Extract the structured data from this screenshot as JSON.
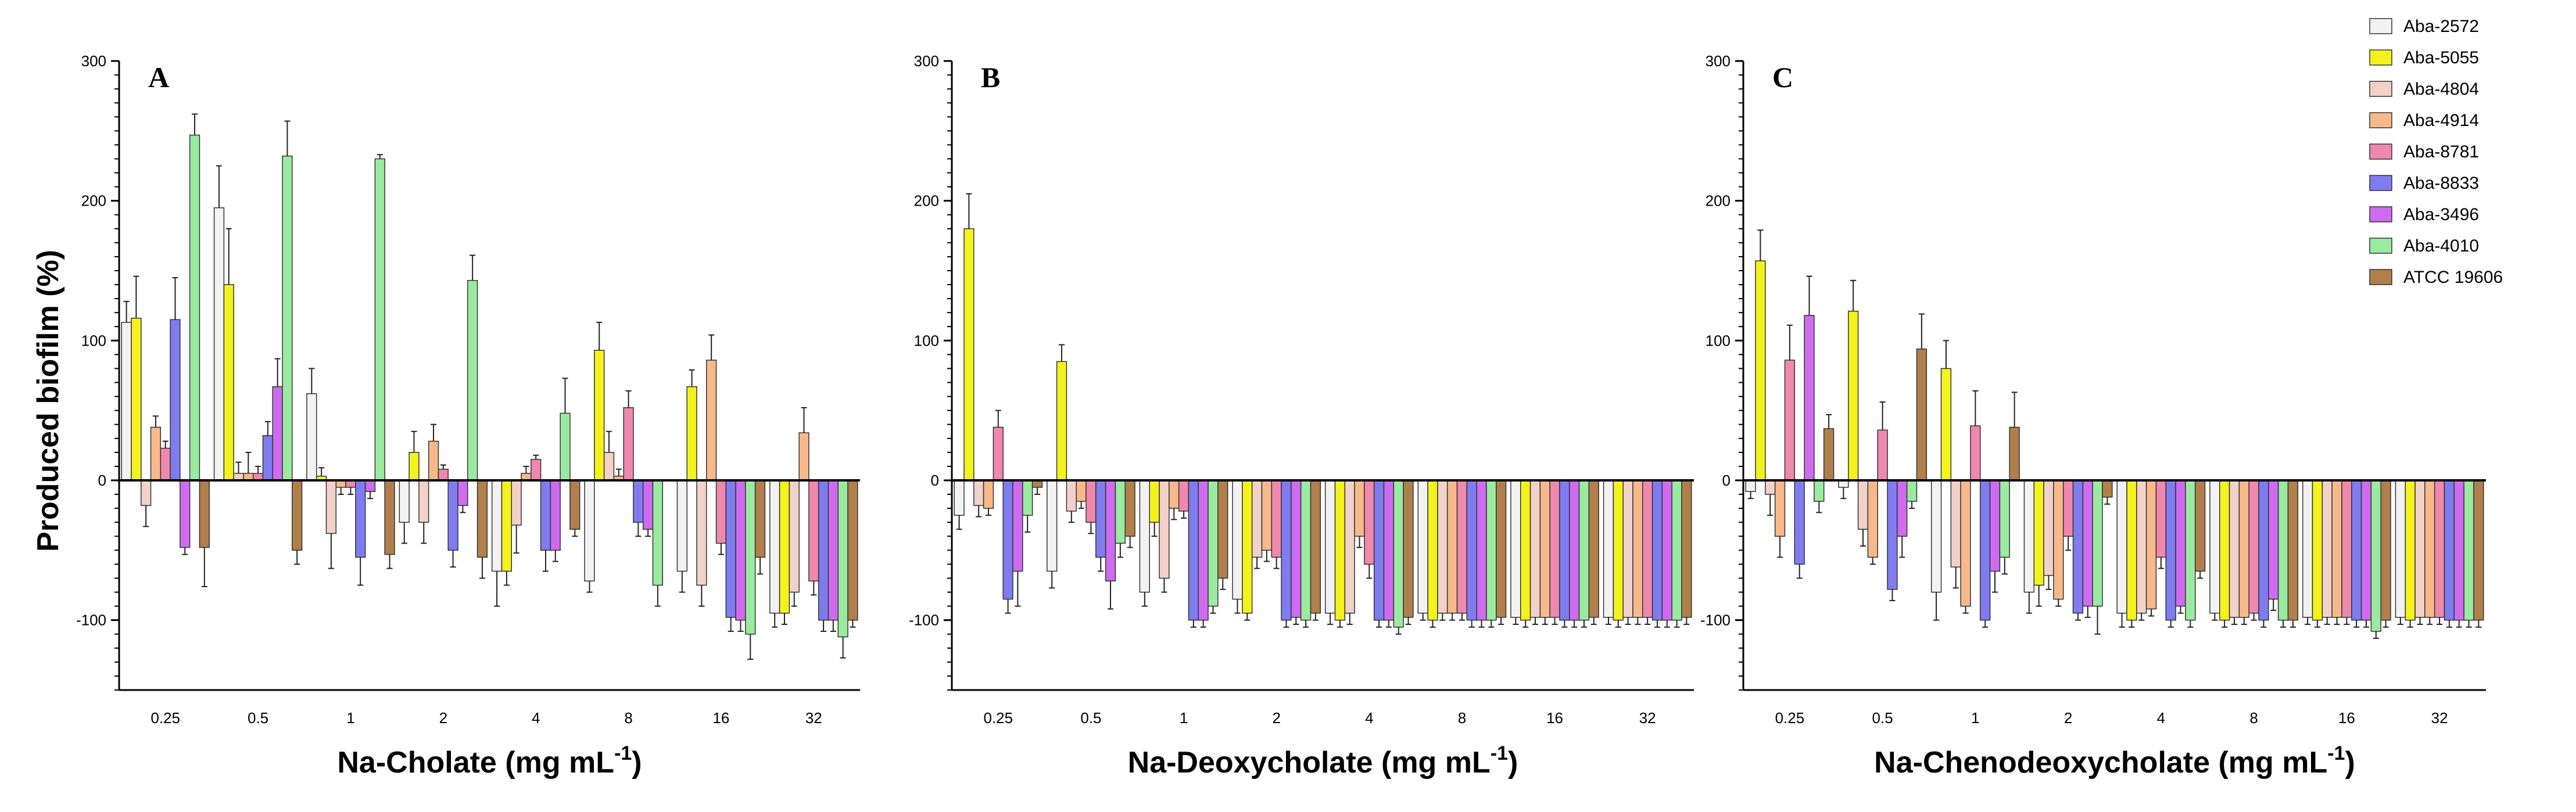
{
  "figure": {
    "ylabel": "Produced biofilm (%)"
  },
  "legend": [
    {
      "name": "Aba-2572",
      "color": "#f2f2f2"
    },
    {
      "name": "Aba-5055",
      "color": "#f4f21c"
    },
    {
      "name": "Aba-4804",
      "color": "#f2d1c9"
    },
    {
      "name": "Aba-4914",
      "color": "#f7b98a"
    },
    {
      "name": "Aba-8781",
      "color": "#ef88ad"
    },
    {
      "name": "Aba-8833",
      "color": "#7e7cef"
    },
    {
      "name": "Aba-3496",
      "color": "#cf6bef"
    },
    {
      "name": "Aba-4010",
      "color": "#9aeba1"
    },
    {
      "name": "ATCC 19606",
      "color": "#b07f4b"
    }
  ],
  "chart_data": [
    {
      "type": "bar",
      "panel": "A",
      "xlabel": "Na-Cholate (mg mL",
      "xlabel_sup": "-1",
      "xlabel_close": ")",
      "ylim": [
        -150,
        300
      ],
      "yticks": [
        300,
        200,
        100,
        0,
        -100
      ],
      "categories": [
        "0.25",
        "0.5",
        "1",
        "2",
        "4",
        "8",
        "16",
        "32"
      ],
      "series": [
        {
          "name": "Aba-2572",
          "values": [
            113,
            195,
            62,
            -30,
            -65,
            -72,
            -65,
            -95
          ],
          "errors": [
            15,
            30,
            18,
            15,
            25,
            8,
            15,
            10
          ]
        },
        {
          "name": "Aba-5055",
          "values": [
            116,
            140,
            3,
            20,
            -65,
            93,
            67,
            -95
          ],
          "errors": [
            30,
            40,
            6,
            15,
            10,
            20,
            12,
            8
          ]
        },
        {
          "name": "Aba-4804",
          "values": [
            -18,
            5,
            -38,
            -30,
            -32,
            20,
            -75,
            -80
          ],
          "errors": [
            15,
            8,
            25,
            15,
            20,
            15,
            15,
            10
          ]
        },
        {
          "name": "Aba-4914",
          "values": [
            38,
            5,
            -5,
            28,
            5,
            3,
            86,
            34
          ],
          "errors": [
            8,
            15,
            5,
            12,
            5,
            5,
            18,
            18
          ]
        },
        {
          "name": "Aba-8781",
          "values": [
            23,
            5,
            -5,
            8,
            15,
            52,
            -45,
            -72
          ],
          "errors": [
            5,
            5,
            5,
            3,
            3,
            12,
            8,
            10
          ]
        },
        {
          "name": "Aba-8833",
          "values": [
            115,
            32,
            -55,
            -50,
            -50,
            -30,
            -98,
            -100
          ],
          "errors": [
            30,
            10,
            20,
            12,
            15,
            10,
            10,
            8
          ]
        },
        {
          "name": "Aba-3496",
          "values": [
            -48,
            67,
            -8,
            -18,
            -50,
            -35,
            -100,
            -100
          ],
          "errors": [
            5,
            20,
            5,
            5,
            8,
            5,
            8,
            8
          ]
        },
        {
          "name": "Aba-4010",
          "values": [
            247,
            232,
            230,
            143,
            48,
            -75,
            -110,
            -112
          ],
          "errors": [
            15,
            25,
            3,
            18,
            25,
            15,
            18,
            15
          ]
        },
        {
          "name": "ATCC 19606",
          "values": [
            -48,
            -50,
            -53,
            -55,
            -35,
            0,
            -55,
            -100
          ],
          "errors": [
            28,
            10,
            10,
            15,
            5,
            0,
            12,
            5
          ]
        }
      ]
    },
    {
      "type": "bar",
      "panel": "B",
      "xlabel": "Na-Deoxycholate (mg mL",
      "xlabel_sup": "-1",
      "xlabel_close": ")",
      "ylim": [
        -150,
        300
      ],
      "yticks": [
        300,
        200,
        100,
        0,
        -100
      ],
      "categories": [
        "0.25",
        "0.5",
        "1",
        "2",
        "4",
        "8",
        "16",
        "32"
      ],
      "series": [
        {
          "name": "Aba-2572",
          "values": [
            -25,
            -65,
            -80,
            -85,
            -95,
            -95,
            -98,
            -98
          ],
          "errors": [
            10,
            12,
            10,
            10,
            8,
            5,
            5,
            5
          ]
        },
        {
          "name": "Aba-5055",
          "values": [
            180,
            85,
            -30,
            -95,
            -100,
            -100,
            -100,
            -100
          ],
          "errors": [
            25,
            12,
            10,
            5,
            5,
            5,
            5,
            5
          ]
        },
        {
          "name": "Aba-4804",
          "values": [
            -18,
            -22,
            -70,
            -55,
            -95,
            -95,
            -98,
            -98
          ],
          "errors": [
            8,
            8,
            10,
            8,
            8,
            5,
            5,
            5
          ]
        },
        {
          "name": "Aba-4914",
          "values": [
            -20,
            -15,
            -20,
            -50,
            -40,
            -95,
            -98,
            -98
          ],
          "errors": [
            5,
            5,
            8,
            8,
            8,
            5,
            5,
            5
          ]
        },
        {
          "name": "Aba-8781",
          "values": [
            38,
            -30,
            -22,
            -55,
            -60,
            -95,
            -98,
            -98
          ],
          "errors": [
            12,
            8,
            5,
            8,
            10,
            5,
            5,
            5
          ]
        },
        {
          "name": "Aba-8833",
          "values": [
            -85,
            -55,
            -100,
            -100,
            -100,
            -100,
            -100,
            -100
          ],
          "errors": [
            10,
            10,
            5,
            5,
            5,
            5,
            5,
            5
          ]
        },
        {
          "name": "Aba-3496",
          "values": [
            -65,
            -72,
            -100,
            -98,
            -100,
            -100,
            -100,
            -100
          ],
          "errors": [
            25,
            20,
            5,
            5,
            5,
            5,
            5,
            5
          ]
        },
        {
          "name": "Aba-4010",
          "values": [
            -25,
            -45,
            -90,
            -100,
            -105,
            -100,
            -100,
            -100
          ],
          "errors": [
            12,
            10,
            5,
            5,
            5,
            5,
            5,
            5
          ]
        },
        {
          "name": "ATCC 19606",
          "values": [
            -5,
            -40,
            -70,
            -95,
            -98,
            -98,
            -98,
            -98
          ],
          "errors": [
            5,
            8,
            8,
            5,
            5,
            5,
            5,
            5
          ]
        }
      ]
    },
    {
      "type": "bar",
      "panel": "C",
      "xlabel": "Na-Chenodeoxycholate (mg mL",
      "xlabel_sup": "-1",
      "xlabel_close": ")",
      "ylim": [
        -150,
        300
      ],
      "yticks": [
        300,
        200,
        100,
        0,
        -100
      ],
      "categories": [
        "0.25",
        "0.5",
        "1",
        "2",
        "4",
        "8",
        "16",
        "32"
      ],
      "series": [
        {
          "name": "Aba-2572",
          "values": [
            -8,
            -5,
            -80,
            -80,
            -95,
            -95,
            -98,
            -98
          ],
          "errors": [
            5,
            8,
            20,
            15,
            10,
            5,
            5,
            5
          ]
        },
        {
          "name": "Aba-5055",
          "values": [
            157,
            121,
            80,
            -75,
            -100,
            -100,
            -100,
            -100
          ],
          "errors": [
            22,
            22,
            20,
            15,
            5,
            5,
            5,
            5
          ]
        },
        {
          "name": "Aba-4804",
          "values": [
            -10,
            -35,
            -62,
            -68,
            -95,
            -98,
            -98,
            -98
          ],
          "errors": [
            15,
            12,
            15,
            10,
            5,
            5,
            5,
            5
          ]
        },
        {
          "name": "Aba-4914",
          "values": [
            -40,
            -55,
            -90,
            -85,
            -92,
            -98,
            -98,
            -98
          ],
          "errors": [
            15,
            5,
            5,
            5,
            5,
            5,
            5,
            5
          ]
        },
        {
          "name": "Aba-8781",
          "values": [
            86,
            36,
            39,
            -40,
            -55,
            -95,
            -98,
            -98
          ],
          "errors": [
            25,
            20,
            25,
            10,
            8,
            5,
            5,
            5
          ]
        },
        {
          "name": "Aba-8833",
          "values": [
            -60,
            -78,
            -100,
            -95,
            -100,
            -100,
            -100,
            -100
          ],
          "errors": [
            10,
            8,
            5,
            5,
            5,
            5,
            5,
            5
          ]
        },
        {
          "name": "Aba-3496",
          "values": [
            118,
            -40,
            -65,
            -90,
            -90,
            -85,
            -100,
            -100
          ],
          "errors": [
            28,
            15,
            15,
            8,
            5,
            8,
            5,
            5
          ]
        },
        {
          "name": "Aba-4010",
          "values": [
            -15,
            -15,
            -55,
            -90,
            -100,
            -100,
            -108,
            -100
          ],
          "errors": [
            8,
            5,
            12,
            20,
            5,
            5,
            5,
            5
          ]
        },
        {
          "name": "ATCC 19606",
          "values": [
            37,
            94,
            38,
            -12,
            -65,
            -100,
            -100,
            -100
          ],
          "errors": [
            10,
            25,
            25,
            5,
            5,
            5,
            5,
            5
          ]
        }
      ]
    }
  ]
}
